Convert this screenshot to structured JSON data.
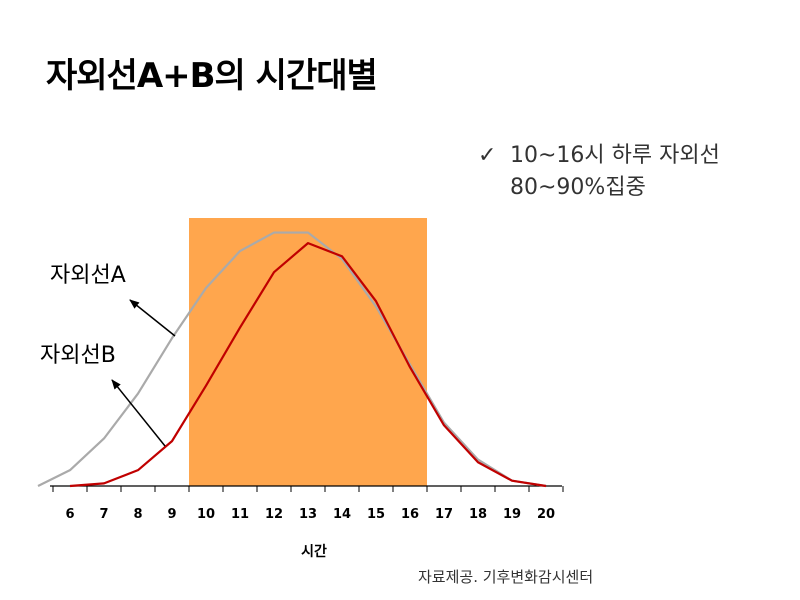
{
  "title": "자외선A+B의 시간대별",
  "note": {
    "check": "✓",
    "line1": "10~16시 하루 자외선",
    "line2": "80~90%집중"
  },
  "source": "자료제공. 기후변화감시센터",
  "chart_data": {
    "type": "line",
    "xlabel": "시간",
    "ylabel": "",
    "title": "",
    "x": [
      6,
      7,
      8,
      9,
      10,
      11,
      12,
      13,
      14,
      15,
      16,
      17,
      18,
      19,
      20
    ],
    "highlight": {
      "from": 9.5,
      "to": 16.5,
      "color": "#FFA64D"
    },
    "series": [
      {
        "name": "자외선A",
        "color": "#AAAAAA",
        "x": [
          5,
          6,
          7,
          8,
          9,
          10,
          11,
          12,
          13,
          14,
          15,
          16,
          17,
          18,
          19,
          20
        ],
        "values": [
          0,
          6,
          18,
          35,
          56,
          75,
          89,
          96,
          96,
          86,
          68,
          46,
          24,
          10,
          2,
          0
        ]
      },
      {
        "name": "자외선B",
        "color": "#C00000",
        "x": [
          6,
          7,
          8,
          9,
          10,
          11,
          12,
          13,
          14,
          15,
          16,
          17,
          18,
          19,
          20
        ],
        "values": [
          0,
          1,
          6,
          17,
          38,
          60,
          81,
          92,
          87,
          70,
          45,
          23,
          9,
          2,
          0
        ]
      }
    ],
    "ylim": [
      0,
      100
    ]
  }
}
